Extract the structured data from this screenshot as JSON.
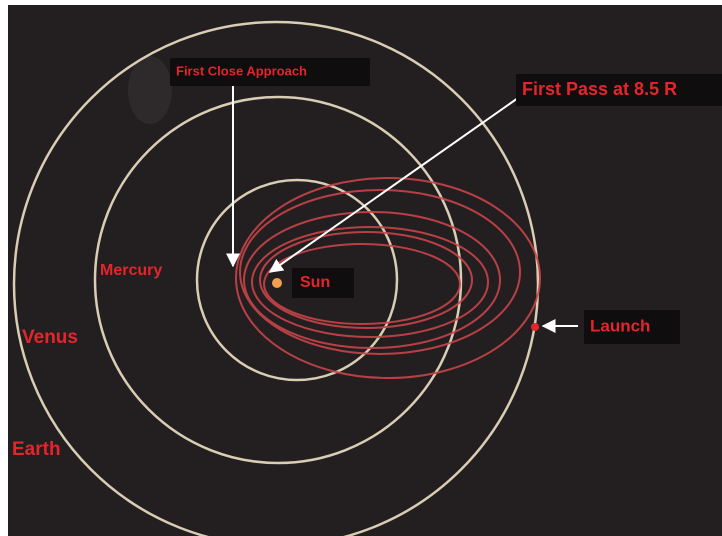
{
  "labels": {
    "first_close_approach": "First Close Approach",
    "first_pass": "First Pass at 8.5 R",
    "mercury": "Mercury",
    "sun": "Sun",
    "venus": "Venus",
    "earth": "Earth",
    "launch": "Launch"
  }
}
